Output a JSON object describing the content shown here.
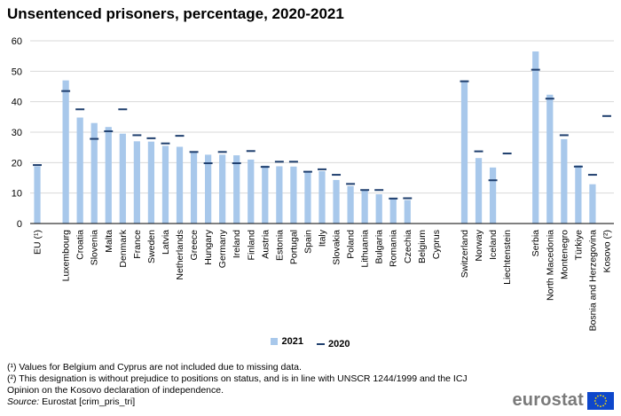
{
  "colors": {
    "bar": "#a8c8eb",
    "marker": "#1f3f6e",
    "grid": "#d9d9d9",
    "logo_text": "#7a7a7a",
    "logo_flag": "#0e47cb",
    "logo_star": "#ffdd00"
  },
  "legend": {
    "item_2021": "2021",
    "item_2020": "2020"
  },
  "notes": {
    "note1": "(¹) Values for Belgium and Cyprus are not included due to missing data.",
    "note2a": "(²) This designation is without prejudice to positions on status, and is in line with UNSCR 1244/1999 and the ICJ",
    "note2b": "Opinion on the Kosovo declaration of independence.",
    "source_label": "Source:",
    "source_text": " Eurostat [crim_pris_tri]"
  },
  "logo": {
    "text": "eurostat",
    "icon": "eu-flag-icon"
  },
  "chart_data": {
    "type": "bar",
    "title": "Unsentenced prisoners, percentage, 2020-2021",
    "xlabel": "",
    "ylabel": "",
    "ylim": [
      0,
      60
    ],
    "yticks": [
      0,
      10,
      20,
      30,
      40,
      50,
      60
    ],
    "grid": true,
    "legend_position": "bottom",
    "categories": [
      "EU (¹)",
      "Luxembourg",
      "Croatia",
      "Slovenia",
      "Malta",
      "Denmark",
      "France",
      "Sweden",
      "Latvia",
      "Netherlands",
      "Greece",
      "Hungary",
      "Germany",
      "Ireland",
      "Finland",
      "Austria",
      "Estonia",
      "Portugal",
      "Spain",
      "Italy",
      "Slovakia",
      "Poland",
      "Lithuania",
      "Bulgaria",
      "Romania",
      "Czechia",
      "Belgium",
      "Cyprus",
      "Switzerland",
      "Norway",
      "Iceland",
      "Liechtenstein",
      "Serbia",
      "North Macedonia",
      "Montenegro",
      "Türkiye",
      "Bosnia and Herzegovina",
      "Kosovo (²)"
    ],
    "gaps_after": [
      "EU (¹)",
      "Cyprus",
      "Liechtenstein"
    ],
    "series": [
      {
        "name": "2021",
        "style": "bar",
        "values": [
          18.8,
          47.0,
          34.8,
          33.0,
          31.7,
          29.5,
          27.0,
          26.9,
          25.5,
          25.2,
          23.7,
          22.6,
          22.6,
          22.4,
          21.0,
          19.0,
          18.8,
          18.7,
          17.3,
          17.2,
          14.3,
          12.3,
          10.9,
          9.6,
          8.0,
          7.7,
          null,
          null,
          47.0,
          21.5,
          18.4,
          null,
          56.5,
          42.3,
          27.7,
          19.1,
          12.9,
          null
        ]
      },
      {
        "name": "2020",
        "style": "marker",
        "values": [
          19.2,
          43.5,
          37.5,
          27.8,
          30.3,
          37.5,
          29.0,
          28.0,
          26.3,
          28.8,
          23.5,
          19.8,
          23.5,
          19.8,
          23.8,
          18.6,
          20.3,
          20.3,
          17.0,
          17.8,
          16.0,
          13.0,
          11.0,
          11.0,
          8.2,
          8.3,
          null,
          null,
          46.7,
          23.7,
          14.2,
          23.0,
          50.5,
          41.0,
          29.0,
          18.7,
          16.0,
          35.3
        ]
      }
    ]
  }
}
